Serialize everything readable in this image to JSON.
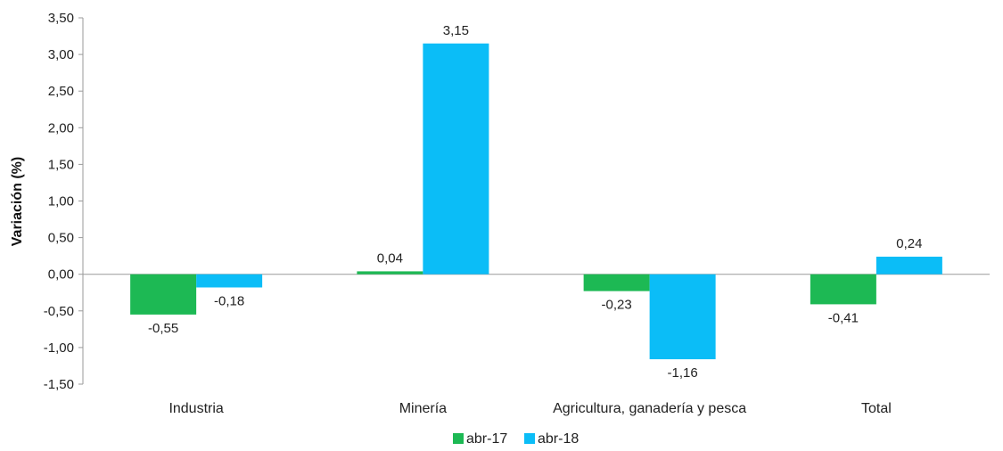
{
  "chart_data": {
    "type": "bar",
    "title": "",
    "xlabel": "",
    "ylabel": "Variación (%)",
    "ylim": [
      -1.5,
      3.5
    ],
    "ytick_step": 0.5,
    "decimal_separator": ",",
    "grid": false,
    "legend_position": "bottom-center",
    "categories": [
      "Industria",
      "Minería",
      "Agricultura, ganadería y pesca",
      "Total"
    ],
    "series": [
      {
        "name": "abr-17",
        "color": "#1DB954",
        "values": [
          -0.55,
          0.04,
          -0.23,
          -0.41
        ],
        "labels": [
          "-0,55",
          "0,04",
          "-0,23",
          "-0,41"
        ]
      },
      {
        "name": "abr-18",
        "color": "#0BBDF7",
        "values": [
          -0.18,
          3.15,
          -1.16,
          0.24
        ],
        "labels": [
          "-0,18",
          "3,15",
          "-1,16",
          "0,24"
        ]
      }
    ]
  }
}
